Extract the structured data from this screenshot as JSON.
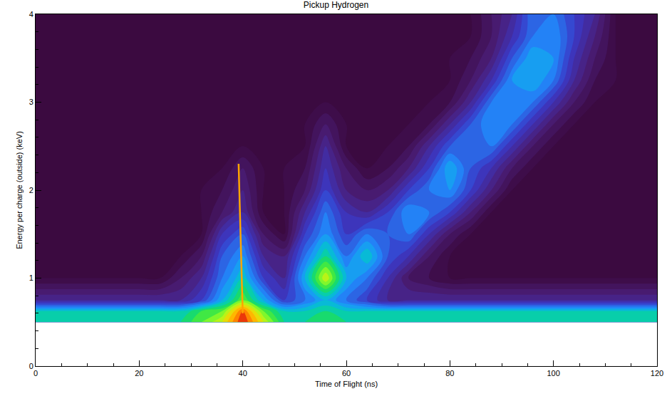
{
  "chart_data": {
    "type": "contour",
    "title": "Pickup Hydrogen",
    "x_label": "Time of Flight (ns)",
    "y_label": "Energy per charge (outside) (keV)",
    "xlim": [
      0,
      120
    ],
    "ylim": [
      0,
      4
    ],
    "xticks": [
      0,
      20,
      40,
      60,
      80,
      100,
      120
    ],
    "yticks": [
      0,
      1,
      2,
      3,
      4
    ],
    "grid": false,
    "zlim": [
      0,
      10
    ],
    "x": [
      0,
      4,
      8,
      12,
      16,
      20,
      24,
      28,
      32,
      36,
      40,
      44,
      48,
      52,
      56,
      60,
      64,
      68,
      72,
      76,
      80,
      84,
      88,
      92,
      96,
      100,
      104,
      108,
      112,
      116,
      120
    ],
    "y": [
      0.5,
      0.625,
      0.75,
      1.0,
      1.25,
      1.5,
      1.75,
      2.0,
      2.25,
      2.5,
      2.75,
      3.0,
      3.25,
      3.5,
      3.75,
      4.0
    ],
    "z": [
      [
        6,
        6,
        6,
        6,
        6,
        6,
        6,
        6,
        7,
        8,
        10,
        8,
        6,
        6,
        6.5,
        6,
        6,
        6,
        6,
        6,
        6,
        6,
        6,
        6,
        6,
        6,
        6,
        6,
        6,
        6,
        6
      ],
      [
        5.5,
        5.5,
        5.5,
        5.5,
        5.5,
        5.5,
        5.5,
        5.5,
        6.5,
        7,
        9.5,
        7,
        5.5,
        5.5,
        6,
        5.5,
        5.5,
        5.5,
        5.5,
        5.5,
        5.5,
        5.5,
        5.5,
        5.5,
        5.5,
        5.5,
        5.5,
        5.5,
        5.5,
        5.5,
        5.5
      ],
      [
        2,
        2,
        2,
        2,
        2,
        2,
        2,
        2,
        3,
        5,
        7,
        5,
        3,
        4,
        5,
        4,
        3,
        2,
        2,
        2,
        2,
        2,
        2,
        2,
        2,
        2,
        2,
        2,
        2,
        2,
        2
      ],
      [
        0,
        0,
        0,
        0,
        0,
        0,
        0,
        1,
        2,
        4,
        5.5,
        3,
        2,
        5,
        8,
        5,
        4,
        2.5,
        1,
        0.5,
        0,
        0,
        0,
        0,
        0,
        0,
        0,
        0,
        0,
        0,
        0
      ],
      [
        0,
        0,
        0,
        0,
        0,
        0,
        0,
        0,
        1,
        3.5,
        4.5,
        2,
        1.5,
        4,
        6,
        4,
        5.5,
        3.5,
        2.5,
        1,
        0,
        0,
        0,
        0,
        0,
        0,
        0,
        0,
        0,
        0,
        0
      ],
      [
        0,
        0,
        0,
        0,
        0,
        0,
        0,
        0,
        0,
        2.5,
        3.5,
        1,
        0,
        3,
        4.5,
        3,
        4,
        3.5,
        4,
        2.5,
        1,
        0,
        0,
        0,
        0,
        0,
        0,
        0,
        0,
        0,
        0
      ],
      [
        0,
        0,
        0,
        0,
        0,
        0,
        0,
        0,
        0,
        1,
        2,
        0,
        0,
        2,
        4,
        2.5,
        2,
        3,
        4.5,
        4,
        3,
        1.5,
        0,
        0,
        0,
        0,
        0,
        0,
        0,
        0,
        0
      ],
      [
        0,
        0,
        0,
        0,
        0,
        0,
        0,
        0,
        0,
        0.5,
        1.5,
        0,
        0,
        1,
        3,
        1.5,
        1,
        1.5,
        3,
        4,
        4.5,
        3,
        1.5,
        0,
        0,
        0,
        0,
        0,
        0,
        0,
        0
      ],
      [
        0,
        0,
        0,
        0,
        0,
        0,
        0,
        0,
        0,
        0,
        1,
        0,
        0,
        0.5,
        2.5,
        1,
        0,
        0.5,
        1.5,
        3,
        5,
        3.5,
        2.5,
        1,
        0,
        0,
        0,
        0,
        0,
        0,
        0
      ],
      [
        0,
        0,
        0,
        0,
        0,
        0,
        0,
        0,
        0,
        0,
        0,
        0,
        0,
        0,
        2,
        0,
        0,
        0,
        0.5,
        2,
        3.5,
        4,
        4,
        2.5,
        1,
        0,
        0,
        0,
        0,
        0,
        0
      ],
      [
        0,
        0,
        0,
        0,
        0,
        0,
        0,
        0,
        0,
        0,
        0,
        0,
        0,
        0,
        1,
        0,
        0,
        0,
        0,
        0.5,
        2,
        3.5,
        4.5,
        4,
        2.5,
        1,
        0,
        0,
        0,
        0,
        0
      ],
      [
        0,
        0,
        0,
        0,
        0,
        0,
        0,
        0,
        0,
        0,
        0,
        0,
        0,
        0,
        0,
        0,
        0,
        0,
        0,
        0,
        0.5,
        2,
        4,
        4.5,
        4,
        2.5,
        1,
        0,
        0,
        0,
        0
      ],
      [
        0,
        0,
        0,
        0,
        0,
        0,
        0,
        0,
        0,
        0,
        0,
        0,
        0,
        0,
        0,
        0,
        0,
        0,
        0,
        0,
        0,
        1,
        2.5,
        4.5,
        5,
        4,
        2,
        0.5,
        0,
        0,
        0
      ],
      [
        0,
        0,
        0,
        0,
        0,
        0,
        0,
        0,
        0,
        0,
        0,
        0,
        0,
        0,
        0,
        0,
        0,
        0,
        0,
        0,
        0,
        0.5,
        1.5,
        3.5,
        5,
        4.5,
        2.5,
        1,
        0,
        0,
        0
      ],
      [
        0,
        0,
        0,
        0,
        0,
        0,
        0,
        0,
        0,
        0,
        0,
        0,
        0,
        0,
        0,
        0,
        0,
        0,
        0,
        0,
        0,
        0,
        1,
        2.5,
        4,
        4.5,
        3,
        1.5,
        0,
        0,
        0
      ],
      [
        0,
        0,
        0,
        0,
        0,
        0,
        0,
        0,
        0,
        0,
        0,
        0,
        0,
        0,
        0,
        0,
        0,
        0,
        0,
        0,
        0,
        0,
        1,
        2,
        4,
        4,
        3,
        2,
        0,
        0,
        0
      ]
    ],
    "overlay": {
      "type": "line",
      "color": "#ffa500",
      "x": [
        39.2,
        39.4,
        39.6,
        39.8,
        40.0
      ],
      "y": [
        2.3,
        1.8,
        1.4,
        1.0,
        0.6
      ]
    }
  }
}
